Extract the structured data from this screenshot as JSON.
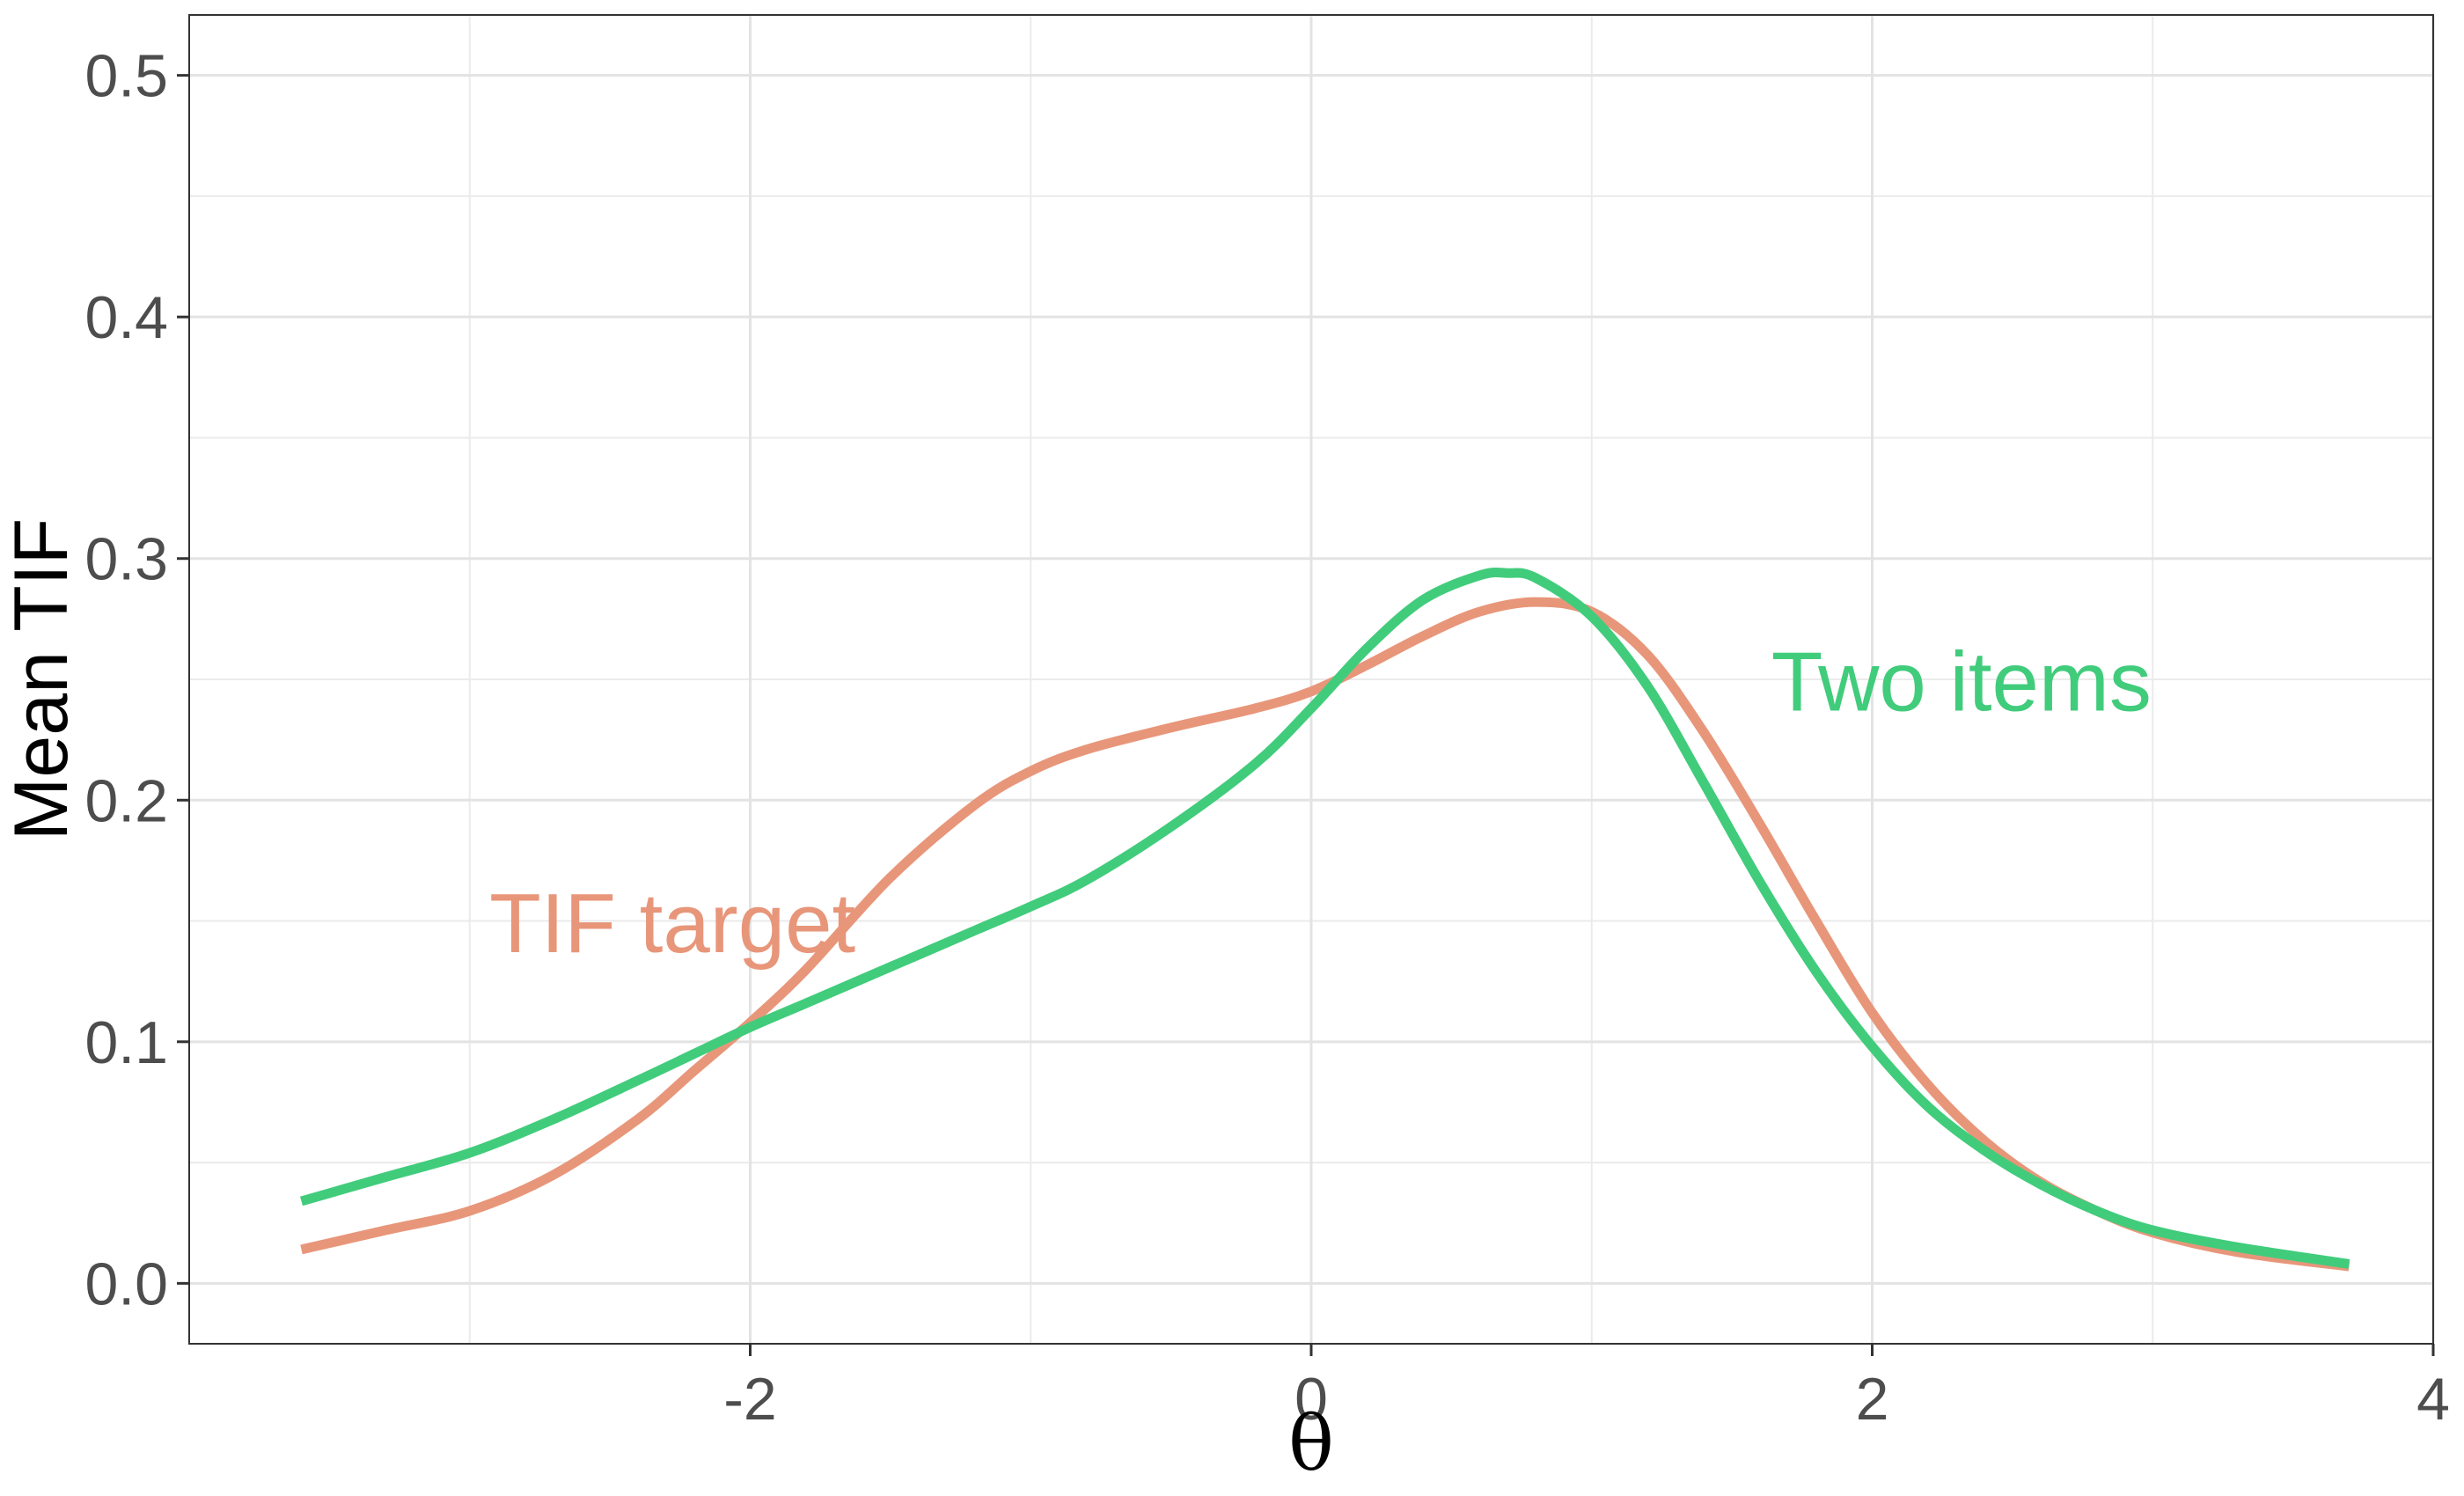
{
  "chart_data": {
    "type": "line",
    "title": "",
    "xlabel": "θ",
    "ylabel": "Mean TIF",
    "xlim": [
      -4.0,
      4.0
    ],
    "ylim": [
      -0.025,
      0.525
    ],
    "x_ticks": [
      -2,
      0,
      2,
      4
    ],
    "x_tick_labels": [
      "-2",
      "0",
      "2",
      "4"
    ],
    "y_ticks": [
      0.0,
      0.1,
      0.2,
      0.3,
      0.4,
      0.5
    ],
    "y_tick_labels": [
      "0.0",
      "0.1",
      "0.2",
      "0.3",
      "0.4",
      "0.5"
    ],
    "grid": true,
    "legend": "none",
    "series": [
      {
        "name": "TIF target",
        "color": "#E8967A",
        "x": [
          -3.6,
          -3.3,
          -3.0,
          -2.7,
          -2.4,
          -2.2,
          -2.0,
          -1.8,
          -1.5,
          -1.2,
          -1.0,
          -0.8,
          -0.5,
          -0.2,
          0.0,
          0.2,
          0.4,
          0.6,
          0.8,
          1.0,
          1.2,
          1.4,
          1.6,
          1.8,
          2.0,
          2.2,
          2.4,
          2.6,
          2.8,
          3.0,
          3.3,
          3.7
        ],
        "y": [
          0.014,
          0.022,
          0.03,
          0.045,
          0.068,
          0.088,
          0.108,
          0.13,
          0.168,
          0.198,
          0.212,
          0.221,
          0.23,
          0.238,
          0.245,
          0.256,
          0.268,
          0.278,
          0.282,
          0.278,
          0.26,
          0.228,
          0.19,
          0.15,
          0.112,
          0.082,
          0.059,
          0.042,
          0.03,
          0.021,
          0.013,
          0.007
        ]
      },
      {
        "name": "Two items",
        "color": "#41CC7C",
        "x": [
          -3.6,
          -3.3,
          -3.0,
          -2.7,
          -2.4,
          -2.2,
          -2.0,
          -1.8,
          -1.5,
          -1.2,
          -1.0,
          -0.8,
          -0.5,
          -0.2,
          0.0,
          0.2,
          0.4,
          0.6,
          0.7,
          0.8,
          1.0,
          1.2,
          1.4,
          1.6,
          1.8,
          2.0,
          2.2,
          2.4,
          2.6,
          2.8,
          3.0,
          3.3,
          3.7
        ],
        "y": [
          0.034,
          0.044,
          0.054,
          0.068,
          0.084,
          0.095,
          0.106,
          0.116,
          0.131,
          0.146,
          0.156,
          0.167,
          0.189,
          0.215,
          0.238,
          0.263,
          0.283,
          0.293,
          0.294,
          0.292,
          0.276,
          0.247,
          0.207,
          0.166,
          0.129,
          0.098,
          0.073,
          0.055,
          0.041,
          0.03,
          0.022,
          0.015,
          0.008
        ]
      }
    ],
    "annotations": [
      {
        "text": "TIF target",
        "color": "#E8967A",
        "x": -2.93,
        "y": 0.137
      },
      {
        "text": "Two items",
        "color": "#41CC7C",
        "x": 1.64,
        "y": 0.237
      }
    ]
  }
}
